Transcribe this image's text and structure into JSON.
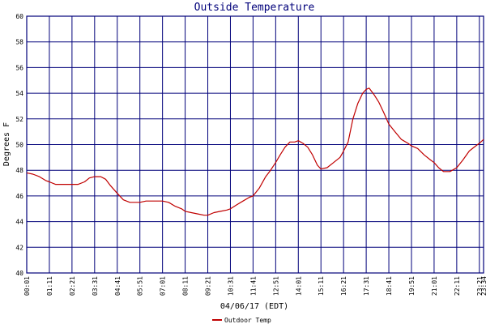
{
  "chart_data": {
    "type": "line",
    "title": "Outside Temperature",
    "ylabel": "Degrees F",
    "xlabel": "04/06/17 (EDT)",
    "ylim": [
      40,
      60
    ],
    "yticks": [
      40,
      42,
      44,
      46,
      48,
      50,
      52,
      54,
      56,
      58,
      60
    ],
    "xticks": [
      "00:01",
      "01:11",
      "02:21",
      "03:31",
      "04:41",
      "05:51",
      "07:01",
      "08:11",
      "09:21",
      "10:31",
      "11:41",
      "12:51",
      "14:01",
      "15:11",
      "16:21",
      "17:31",
      "18:41",
      "19:51",
      "21:01",
      "22:11",
      "23:21",
      "23:34"
    ],
    "xlim": [
      "00:01",
      "23:34"
    ],
    "grid": true,
    "series": [
      {
        "name": "Outdoor Temp",
        "color": "#c00000",
        "points": [
          [
            "00:01",
            47.8
          ],
          [
            "00:20",
            47.7
          ],
          [
            "00:40",
            47.5
          ],
          [
            "01:00",
            47.2
          ],
          [
            "01:11",
            47.1
          ],
          [
            "01:30",
            46.9
          ],
          [
            "01:50",
            46.9
          ],
          [
            "02:10",
            46.9
          ],
          [
            "02:21",
            46.9
          ],
          [
            "02:40",
            46.9
          ],
          [
            "03:00",
            47.1
          ],
          [
            "03:15",
            47.4
          ],
          [
            "03:31",
            47.5
          ],
          [
            "03:50",
            47.5
          ],
          [
            "04:05",
            47.3
          ],
          [
            "04:20",
            46.8
          ],
          [
            "04:41",
            46.2
          ],
          [
            "05:00",
            45.7
          ],
          [
            "05:20",
            45.5
          ],
          [
            "05:40",
            45.5
          ],
          [
            "05:51",
            45.5
          ],
          [
            "06:10",
            45.6
          ],
          [
            "06:30",
            45.6
          ],
          [
            "06:50",
            45.6
          ],
          [
            "07:01",
            45.6
          ],
          [
            "07:20",
            45.5
          ],
          [
            "07:40",
            45.2
          ],
          [
            "08:00",
            45.0
          ],
          [
            "08:11",
            44.8
          ],
          [
            "08:30",
            44.7
          ],
          [
            "08:50",
            44.6
          ],
          [
            "09:10",
            44.5
          ],
          [
            "09:21",
            44.5
          ],
          [
            "09:40",
            44.7
          ],
          [
            "10:00",
            44.8
          ],
          [
            "10:20",
            44.9
          ],
          [
            "10:31",
            45.0
          ],
          [
            "10:50",
            45.3
          ],
          [
            "11:10",
            45.6
          ],
          [
            "11:30",
            45.9
          ],
          [
            "11:41",
            46.0
          ],
          [
            "12:00",
            46.6
          ],
          [
            "12:20",
            47.5
          ],
          [
            "12:35",
            48.0
          ],
          [
            "12:51",
            48.6
          ],
          [
            "13:05",
            49.2
          ],
          [
            "13:20",
            49.8
          ],
          [
            "13:35",
            50.2
          ],
          [
            "13:50",
            50.2
          ],
          [
            "14:01",
            50.3
          ],
          [
            "14:15",
            50.1
          ],
          [
            "14:30",
            49.8
          ],
          [
            "14:45",
            49.2
          ],
          [
            "15:00",
            48.4
          ],
          [
            "15:11",
            48.1
          ],
          [
            "15:30",
            48.2
          ],
          [
            "15:50",
            48.6
          ],
          [
            "16:10",
            49.0
          ],
          [
            "16:21",
            49.5
          ],
          [
            "16:35",
            50.2
          ],
          [
            "16:50",
            52.0
          ],
          [
            "17:05",
            53.2
          ],
          [
            "17:20",
            54.0
          ],
          [
            "17:31",
            54.3
          ],
          [
            "17:40",
            54.4
          ],
          [
            "17:55",
            53.9
          ],
          [
            "18:10",
            53.3
          ],
          [
            "18:25",
            52.5
          ],
          [
            "18:41",
            51.6
          ],
          [
            "19:00",
            51.0
          ],
          [
            "19:20",
            50.4
          ],
          [
            "19:40",
            50.1
          ],
          [
            "19:51",
            49.9
          ],
          [
            "20:10",
            49.7
          ],
          [
            "20:30",
            49.2
          ],
          [
            "20:50",
            48.8
          ],
          [
            "21:01",
            48.6
          ],
          [
            "21:15",
            48.2
          ],
          [
            "21:30",
            47.9
          ],
          [
            "21:50",
            47.9
          ],
          [
            "22:11",
            48.2
          ],
          [
            "22:30",
            48.8
          ],
          [
            "22:50",
            49.5
          ],
          [
            "23:10",
            49.9
          ],
          [
            "23:21",
            50.1
          ],
          [
            "23:34",
            50.4
          ]
        ]
      }
    ],
    "legend": [
      "Outdoor Temp"
    ],
    "legend_position": "bottom-center",
    "colors": {
      "grid": "#00007a",
      "frame": "#00007a",
      "series": "#c00000",
      "title": "#00007a"
    }
  }
}
